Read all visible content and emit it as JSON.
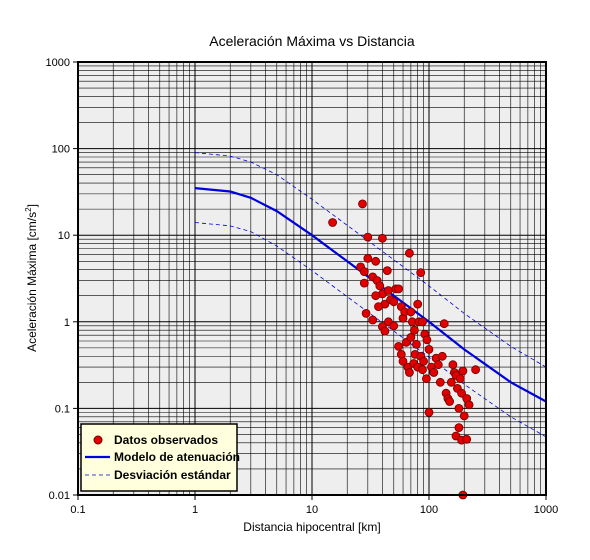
{
  "chart_data": {
    "type": "scatter",
    "title": "Aceleración Máxima vs Distancia",
    "xlabel": "Distancia hipocentral [km]",
    "ylabel_main": "Aceleración Máxima [cm/s",
    "ylabel_sup": "2",
    "ylabel_close": "]",
    "xscale": "log",
    "yscale": "log",
    "xlim": [
      0.1,
      1000
    ],
    "ylim": [
      0.01,
      1000
    ],
    "grid": true,
    "x_ticks": [
      "0.1",
      "1",
      "10",
      "100",
      "1000"
    ],
    "y_ticks": [
      "0.01",
      "0.1",
      "1",
      "10",
      "100",
      "1000"
    ],
    "legend_position": "bottom-left",
    "colors": {
      "observed_fill": "#e00000",
      "observed_edge": "#700000",
      "model": "#0000dd",
      "stddev": "#0000dd",
      "plot_background": "#eeeeee",
      "legend_background": "#ffffdd"
    },
    "series": [
      {
        "name": "Datos observados",
        "kind": "scatter",
        "points": [
          [
            15,
            14
          ],
          [
            27,
            23
          ],
          [
            30,
            9.5
          ],
          [
            40,
            9.2
          ],
          [
            35,
            5
          ],
          [
            26,
            4.3
          ],
          [
            28,
            3.8
          ],
          [
            30,
            5.4
          ],
          [
            33,
            3.3
          ],
          [
            36,
            3.0
          ],
          [
            38,
            2.6
          ],
          [
            40,
            2.1
          ],
          [
            42,
            1.6
          ],
          [
            44,
            3.9
          ],
          [
            45,
            2.3
          ],
          [
            47,
            1.8
          ],
          [
            50,
            1.7
          ],
          [
            52,
            2.4
          ],
          [
            55,
            2.4
          ],
          [
            58,
            1.5
          ],
          [
            60,
            1.1
          ],
          [
            62,
            1.3
          ],
          [
            68,
            6.2
          ],
          [
            70,
            1.3
          ],
          [
            72,
            1.0
          ],
          [
            75,
            0.8
          ],
          [
            80,
            1.6
          ],
          [
            82,
            1.0
          ],
          [
            85,
            3.7
          ],
          [
            88,
            1.0
          ],
          [
            92,
            0.72
          ],
          [
            96,
            0.62
          ],
          [
            28,
            2.8
          ],
          [
            29,
            1.25
          ],
          [
            33,
            1.05
          ],
          [
            35,
            2.0
          ],
          [
            37,
            1.5
          ],
          [
            40,
            0.88
          ],
          [
            42,
            0.78
          ],
          [
            45,
            1.0
          ],
          [
            50,
            0.9
          ],
          [
            55,
            0.52
          ],
          [
            58,
            0.42
          ],
          [
            60,
            0.35
          ],
          [
            64,
            0.58
          ],
          [
            66,
            0.3
          ],
          [
            68,
            0.26
          ],
          [
            70,
            0.66
          ],
          [
            74,
            0.33
          ],
          [
            76,
            0.42
          ],
          [
            78,
            0.55
          ],
          [
            80,
            0.3
          ],
          [
            85,
            0.4
          ],
          [
            88,
            0.28
          ],
          [
            90,
            0.35
          ],
          [
            95,
            0.22
          ],
          [
            100,
            0.48
          ],
          [
            105,
            0.3
          ],
          [
            110,
            0.26
          ],
          [
            115,
            0.38
          ],
          [
            120,
            0.32
          ],
          [
            125,
            0.2
          ],
          [
            130,
            0.4
          ],
          [
            135,
            0.95
          ],
          [
            140,
            0.15
          ],
          [
            145,
            0.13
          ],
          [
            150,
            0.12
          ],
          [
            155,
            0.2
          ],
          [
            160,
            0.32
          ],
          [
            165,
            0.26
          ],
          [
            170,
            0.24
          ],
          [
            175,
            0.17
          ],
          [
            180,
            0.1
          ],
          [
            185,
            0.22
          ],
          [
            190,
            0.15
          ],
          [
            195,
            0.27
          ],
          [
            200,
            0.082
          ],
          [
            210,
            0.13
          ],
          [
            220,
            0.11
          ],
          [
            250,
            0.28
          ],
          [
            100,
            0.09
          ],
          [
            180,
            0.06
          ],
          [
            170,
            0.048
          ],
          [
            190,
            0.043
          ],
          [
            210,
            0.044
          ],
          [
            195,
            0.01
          ]
        ]
      },
      {
        "name": "Modelo de atenuación",
        "kind": "line",
        "style": "solid",
        "points": [
          [
            1,
            35
          ],
          [
            2,
            32
          ],
          [
            3,
            27
          ],
          [
            5,
            19
          ],
          [
            10,
            10
          ],
          [
            20,
            5.0
          ],
          [
            50,
            2.0
          ],
          [
            100,
            1.0
          ],
          [
            200,
            0.48
          ],
          [
            500,
            0.2
          ],
          [
            1000,
            0.12
          ]
        ]
      },
      {
        "name": "Desviación estándar",
        "kind": "line",
        "style": "dashed",
        "points": [
          [
            1,
            90
          ],
          [
            2,
            82
          ],
          [
            3,
            70
          ],
          [
            5,
            50
          ],
          [
            10,
            26
          ],
          [
            20,
            13
          ],
          [
            50,
            5.2
          ],
          [
            100,
            2.6
          ],
          [
            200,
            1.25
          ],
          [
            500,
            0.52
          ],
          [
            1000,
            0.3
          ]
        ]
      },
      {
        "kind": "line",
        "style": "dashed",
        "points": [
          [
            1,
            14
          ],
          [
            2,
            12.8
          ],
          [
            3,
            11
          ],
          [
            5,
            7.5
          ],
          [
            10,
            3.9
          ],
          [
            20,
            1.95
          ],
          [
            50,
            0.78
          ],
          [
            100,
            0.39
          ],
          [
            200,
            0.19
          ],
          [
            500,
            0.08
          ],
          [
            1000,
            0.047
          ]
        ]
      }
    ]
  }
}
